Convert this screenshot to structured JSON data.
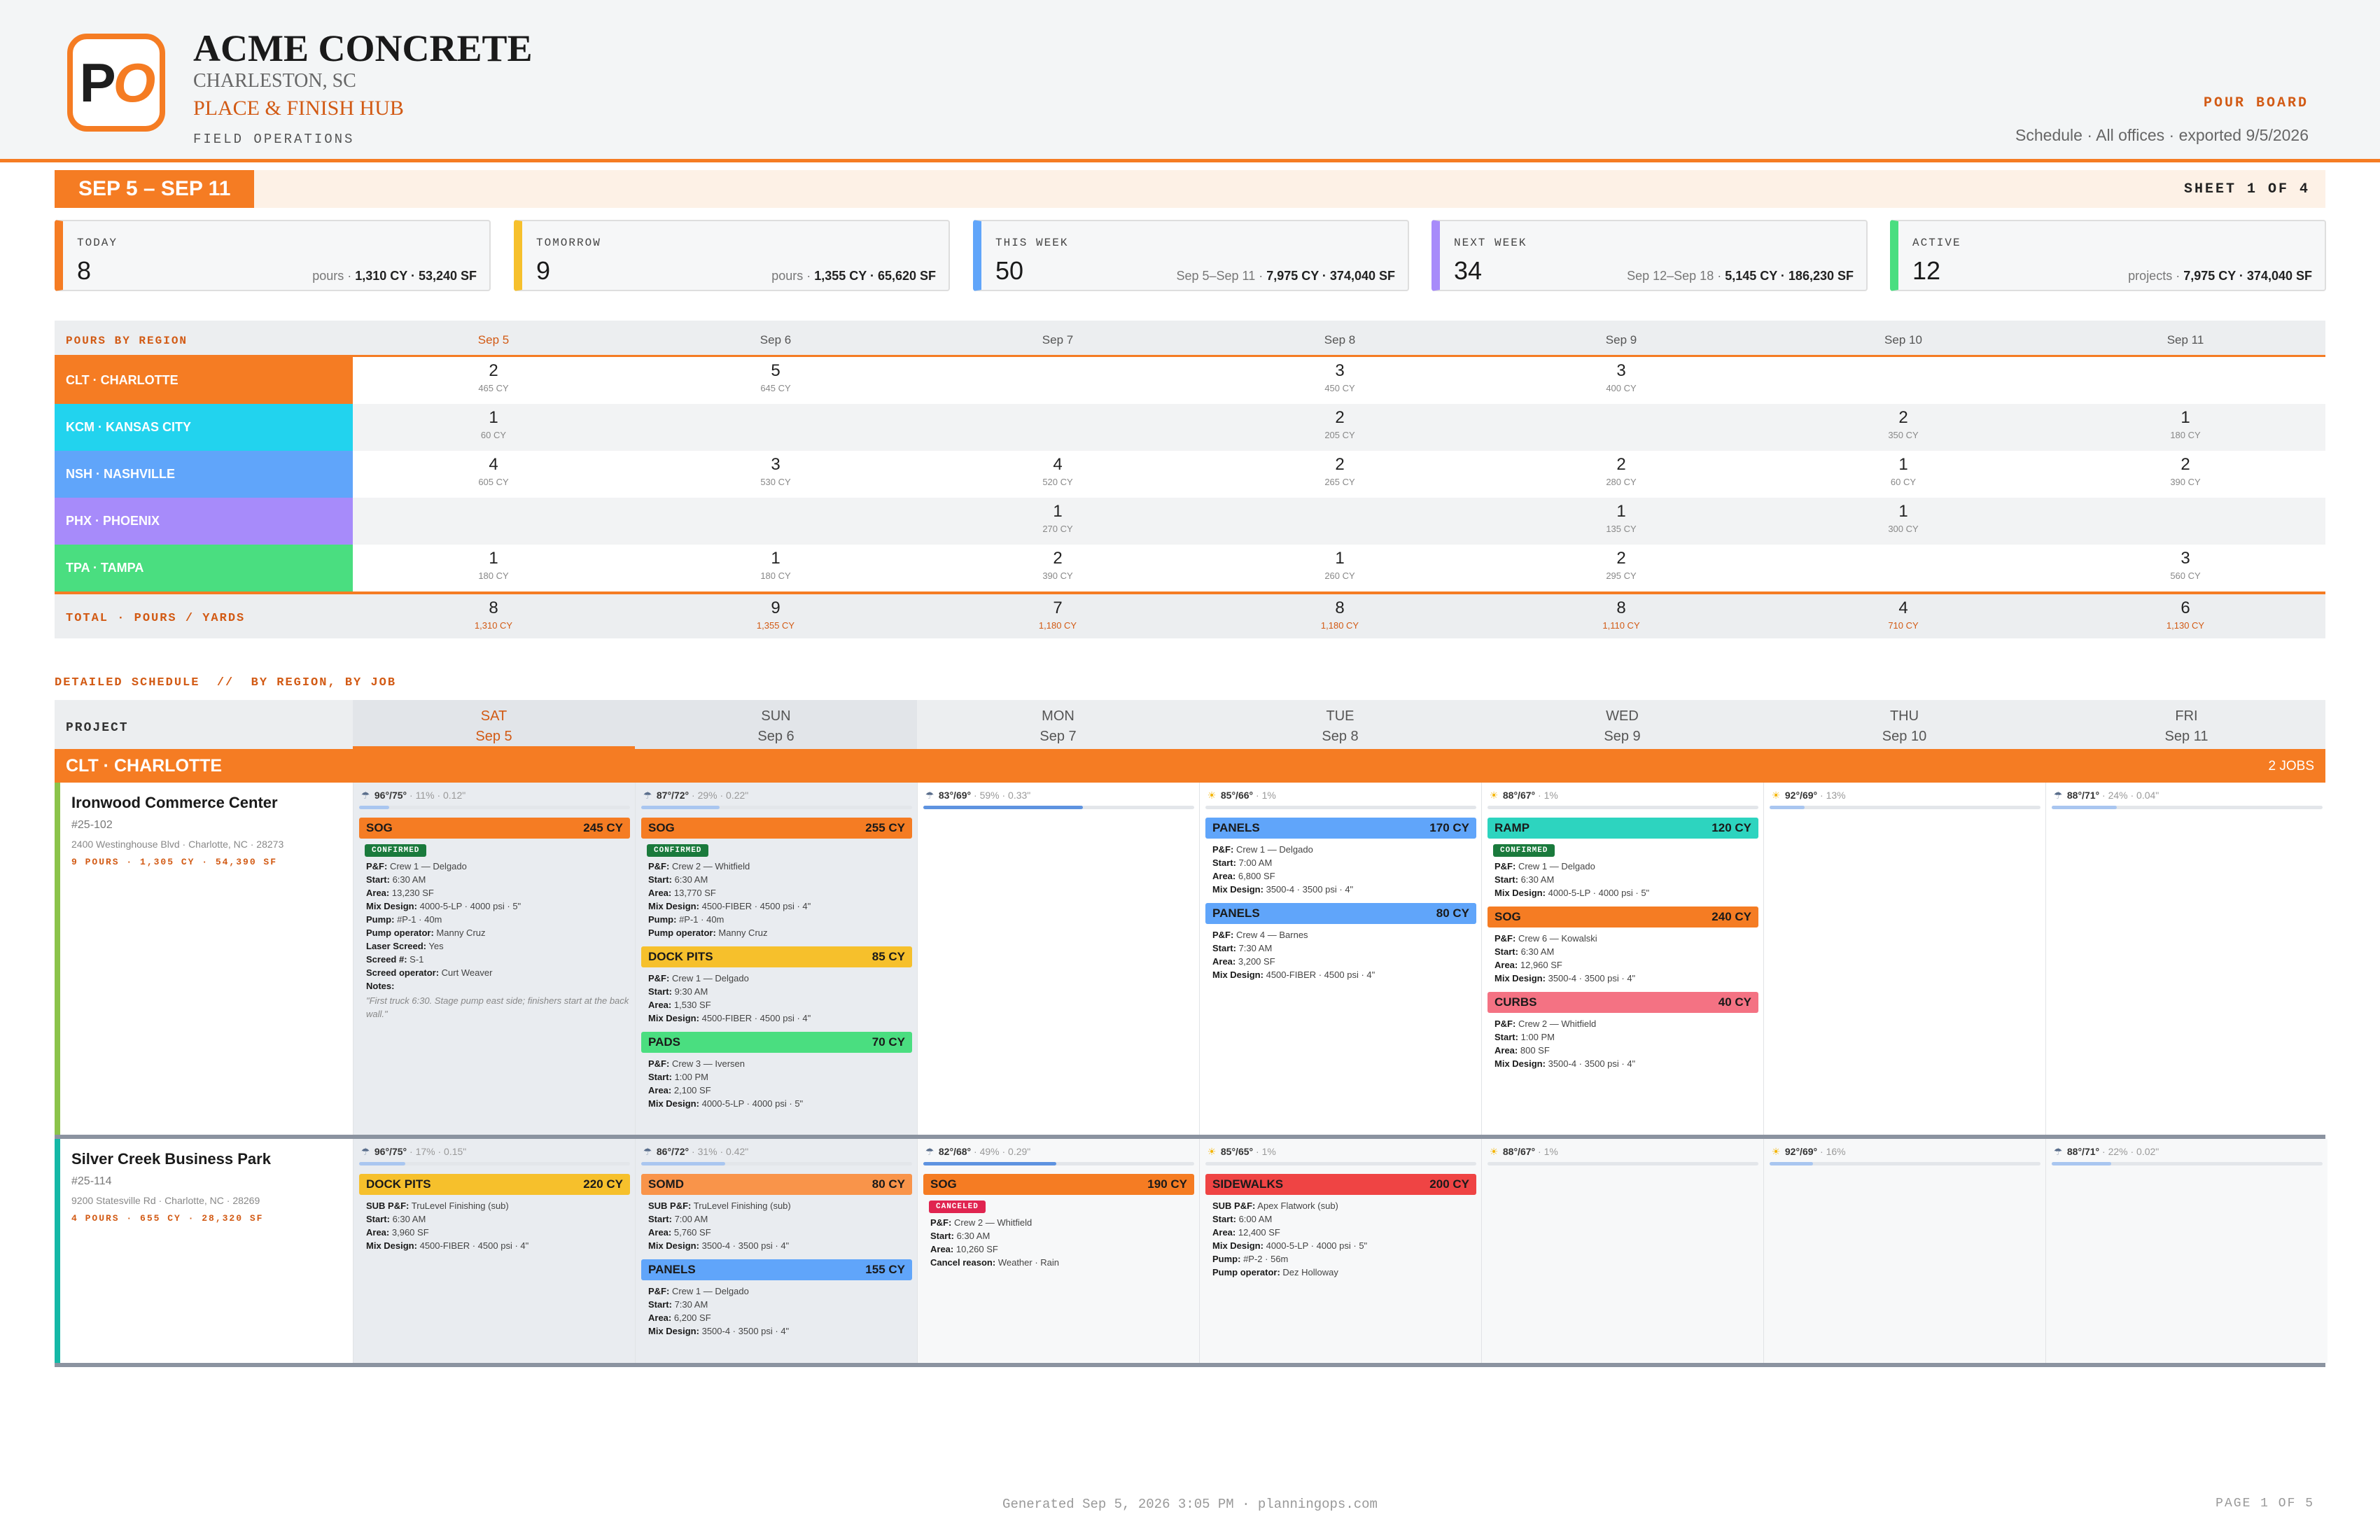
{
  "header": {
    "logo_p": "P",
    "logo_o": "O",
    "company": "ACME CONCRETE",
    "city": "CHARLESTON, SC",
    "hub": "PLACE & FINISH HUB",
    "field_ops": "FIELD OPERATIONS",
    "board_title": "POUR BOARD",
    "board_sub": "Schedule · All offices · exported 9/5/2026"
  },
  "range": {
    "label": "SEP 5 – SEP 11",
    "sheet": "SHEET 1 OF 4"
  },
  "stats": [
    {
      "label": "TODAY",
      "num": "8",
      "pre": "pours · ",
      "bold": "1,310 CY · 53,240 SF",
      "color": "#f57c23"
    },
    {
      "label": "TOMORROW",
      "num": "9",
      "pre": "pours · ",
      "bold": "1,355 CY · 65,620 SF",
      "color": "#f6c02c"
    },
    {
      "label": "THIS WEEK",
      "num": "50",
      "pre": "Sep 5–Sep 11 · ",
      "bold": "7,975 CY · 374,040 SF",
      "color": "#60a5fa"
    },
    {
      "label": "NEXT WEEK",
      "num": "34",
      "pre": "Sep 12–Sep 18 · ",
      "bold": "5,145 CY · 186,230 SF",
      "color": "#a78bfa"
    },
    {
      "label": "ACTIVE",
      "num": "12",
      "pre": "projects · ",
      "bold": "7,975 CY · 374,040 SF",
      "color": "#4ade80"
    }
  ],
  "regions": {
    "label": "POURS BY REGION",
    "days": [
      "Sep 5",
      "Sep 6",
      "Sep 7",
      "Sep 8",
      "Sep 9",
      "Sep 10",
      "Sep 11"
    ],
    "rows": [
      {
        "name": "CLT · CHARLOTTE",
        "color": "#f57c23",
        "cells": [
          [
            "2",
            "465 CY"
          ],
          [
            "5",
            "645 CY"
          ],
          null,
          [
            "3",
            "450 CY"
          ],
          [
            "3",
            "400 CY"
          ],
          null,
          null
        ]
      },
      {
        "name": "KCM · KANSAS CITY",
        "color": "#22d3ee",
        "cells": [
          [
            "1",
            "60 CY"
          ],
          null,
          null,
          [
            "2",
            "205 CY"
          ],
          null,
          [
            "2",
            "350 CY"
          ],
          [
            "1",
            "180 CY"
          ]
        ]
      },
      {
        "name": "NSH · NASHVILLE",
        "color": "#60a5fa",
        "cells": [
          [
            "4",
            "605 CY"
          ],
          [
            "3",
            "530 CY"
          ],
          [
            "4",
            "520 CY"
          ],
          [
            "2",
            "265 CY"
          ],
          [
            "2",
            "280 CY"
          ],
          [
            "1",
            "60 CY"
          ],
          [
            "2",
            "390 CY"
          ]
        ]
      },
      {
        "name": "PHX · PHOENIX",
        "color": "#a78bfa",
        "cells": [
          null,
          null,
          [
            "1",
            "270 CY"
          ],
          null,
          [
            "1",
            "135 CY"
          ],
          [
            "1",
            "300 CY"
          ],
          null
        ]
      },
      {
        "name": "TPA · TAMPA",
        "color": "#4ade80",
        "cells": [
          [
            "1",
            "180 CY"
          ],
          [
            "1",
            "180 CY"
          ],
          [
            "2",
            "390 CY"
          ],
          [
            "1",
            "260 CY"
          ],
          [
            "2",
            "295 CY"
          ],
          null,
          [
            "3",
            "560 CY"
          ]
        ]
      }
    ],
    "total_label": "TOTAL · POURS / YARDS",
    "totals": [
      [
        "8",
        "1,310 CY"
      ],
      [
        "9",
        "1,355 CY"
      ],
      [
        "7",
        "1,180 CY"
      ],
      [
        "8",
        "1,180 CY"
      ],
      [
        "8",
        "1,110 CY"
      ],
      [
        "4",
        "710 CY"
      ],
      [
        "6",
        "1,130 CY"
      ]
    ]
  },
  "detail_title": "DETAILED SCHEDULE  //  BY REGION, BY JOB",
  "schedule": {
    "project_label": "PROJECT",
    "cols": [
      [
        "SAT",
        "Sep 5"
      ],
      [
        "SUN",
        "Sep 6"
      ],
      [
        "MON",
        "Sep 7"
      ],
      [
        "TUE",
        "Sep 8"
      ],
      [
        "WED",
        "Sep 9"
      ],
      [
        "THU",
        "Sep 10"
      ],
      [
        "FRI",
        "Sep 11"
      ]
    ],
    "region": {
      "name": "CLT · CHARLOTTE",
      "jobs": "2 JOBS"
    },
    "jobs": [
      {
        "title": "Ironwood Commerce Center",
        "num": "#25-102",
        "addr": "2400 Westinghouse Blvd · Charlotte, NC · 28273",
        "stats": "9 POURS · 1,305 CY · 54,390 SF",
        "color": "#8bc34a",
        "days": [
          {
            "wx": {
              "icon": "rain",
              "t": "96°/75°",
              "p": "· 11% · 0.12\"",
              "bar": 0.11
            },
            "pours": [
              {
                "type": "SOG",
                "cy": "245 CY",
                "c": "c-sog",
                "badge": "CONFIRMED",
                "kv": [
                  [
                    "P&F:",
                    "Crew 1 — Delgado"
                  ],
                  [
                    "Start:",
                    "6:30 AM"
                  ],
                  [
                    "Area:",
                    "13,230 SF"
                  ],
                  [
                    "Mix Design:",
                    "4000-5-LP · 4000 psi · 5\""
                  ],
                  [
                    "Pump:",
                    "#P-1 · 40m"
                  ],
                  [
                    "Pump operator:",
                    "Manny Cruz"
                  ],
                  [
                    "Laser Screed:",
                    "Yes"
                  ],
                  [
                    "Screed #:",
                    "S-1"
                  ],
                  [
                    "Screed operator:",
                    "Curt Weaver"
                  ],
                  [
                    "Notes:",
                    ""
                  ]
                ],
                "notes": "\"First truck 6:30. Stage pump east side; finishers start at the back wall.\""
              }
            ]
          },
          {
            "wx": {
              "icon": "rain",
              "t": "87°/72°",
              "p": "· 29% · 0.22\"",
              "bar": 0.29
            },
            "pours": [
              {
                "type": "SOG",
                "cy": "255 CY",
                "c": "c-sog",
                "badge": "CONFIRMED",
                "kv": [
                  [
                    "P&F:",
                    "Crew 2 — Whitfield"
                  ],
                  [
                    "Start:",
                    "6:30 AM"
                  ],
                  [
                    "Area:",
                    "13,770 SF"
                  ],
                  [
                    "Mix Design:",
                    "4500-FIBER · 4500 psi · 4\""
                  ],
                  [
                    "Pump:",
                    "#P-1 · 40m"
                  ],
                  [
                    "Pump operator:",
                    "Manny Cruz"
                  ]
                ]
              },
              {
                "type": "DOCK PITS",
                "cy": "85 CY",
                "c": "c-dock",
                "kv": [
                  [
                    "P&F:",
                    "Crew 1 — Delgado"
                  ],
                  [
                    "Start:",
                    "9:30 AM"
                  ],
                  [
                    "Area:",
                    "1,530 SF"
                  ],
                  [
                    "Mix Design:",
                    "4500-FIBER · 4500 psi · 4\""
                  ]
                ]
              },
              {
                "type": "PADS",
                "cy": "70 CY",
                "c": "c-pads",
                "kv": [
                  [
                    "P&F:",
                    "Crew 3 — Iversen"
                  ],
                  [
                    "Start:",
                    "1:00 PM"
                  ],
                  [
                    "Area:",
                    "2,100 SF"
                  ],
                  [
                    "Mix Design:",
                    "4000-5-LP · 4000 psi · 5\""
                  ]
                ]
              }
            ]
          },
          {
            "wx": {
              "icon": "rain",
              "t": "83°/69°",
              "p": "· 59% · 0.33\"",
              "bar": 0.59,
              "h": true
            },
            "pours": []
          },
          {
            "wx": {
              "icon": "sun",
              "t": "85°/66°",
              "p": "· 1%",
              "bar": 0
            },
            "pours": [
              {
                "type": "PANELS",
                "cy": "170 CY",
                "c": "c-panels",
                "kv": [
                  [
                    "P&F:",
                    "Crew 1 — Delgado"
                  ],
                  [
                    "Start:",
                    "7:00 AM"
                  ],
                  [
                    "Area:",
                    "6,800 SF"
                  ],
                  [
                    "Mix Design:",
                    "3500-4 · 3500 psi · 4\""
                  ]
                ]
              },
              {
                "type": "PANELS",
                "cy": "80 CY",
                "c": "c-panels",
                "kv": [
                  [
                    "P&F:",
                    "Crew 4 — Barnes"
                  ],
                  [
                    "Start:",
                    "7:30 AM"
                  ],
                  [
                    "Area:",
                    "3,200 SF"
                  ],
                  [
                    "Mix Design:",
                    "4500-FIBER · 4500 psi · 4\""
                  ]
                ]
              }
            ]
          },
          {
            "wx": {
              "icon": "sun",
              "t": "88°/67°",
              "p": "· 1%",
              "bar": 0
            },
            "pours": [
              {
                "type": "RAMP",
                "cy": "120 CY",
                "c": "c-ramp",
                "badge": "CONFIRMED",
                "kv": [
                  [
                    "P&F:",
                    "Crew 1 — Delgado"
                  ],
                  [
                    "Start:",
                    "6:30 AM"
                  ],
                  [
                    "Mix Design:",
                    "4000-5-LP · 4000 psi · 5\""
                  ]
                ]
              },
              {
                "type": "SOG",
                "cy": "240 CY",
                "c": "c-sog",
                "kv": [
                  [
                    "P&F:",
                    "Crew 6 — Kowalski"
                  ],
                  [
                    "Start:",
                    "6:30 AM"
                  ],
                  [
                    "Area:",
                    "12,960 SF"
                  ],
                  [
                    "Mix Design:",
                    "3500-4 · 3500 psi · 4\""
                  ]
                ]
              },
              {
                "type": "CURBS",
                "cy": "40 CY",
                "c": "c-curbs",
                "kv": [
                  [
                    "P&F:",
                    "Crew 2 — Whitfield"
                  ],
                  [
                    "Start:",
                    "1:00 PM"
                  ],
                  [
                    "Area:",
                    "800 SF"
                  ],
                  [
                    "Mix Design:",
                    "3500-4 · 3500 psi · 4\""
                  ]
                ]
              }
            ]
          },
          {
            "wx": {
              "icon": "sun",
              "t": "92°/69°",
              "p": "· 13%",
              "bar": 0.13
            },
            "pours": []
          },
          {
            "wx": {
              "icon": "rain",
              "t": "88°/71°",
              "p": "· 24% · 0.04\"",
              "bar": 0.24
            },
            "pours": []
          }
        ]
      },
      {
        "title": "Silver Creek Business Park",
        "num": "#25-114",
        "addr": "9200 Statesville Rd · Charlotte, NC · 28269",
        "stats": "4 POURS · 655 CY · 28,320 SF",
        "color": "#14b8a6",
        "days": [
          {
            "wx": {
              "icon": "rain",
              "t": "96°/75°",
              "p": "· 17% · 0.15\"",
              "bar": 0.17
            },
            "pours": [
              {
                "type": "DOCK PITS",
                "cy": "220 CY",
                "c": "c-dock",
                "kv": [
                  [
                    "SUB P&F:",
                    "TruLevel Finishing (sub)"
                  ],
                  [
                    "Start:",
                    "6:30 AM"
                  ],
                  [
                    "Area:",
                    "3,960 SF"
                  ],
                  [
                    "Mix Design:",
                    "4500-FIBER · 4500 psi · 4\""
                  ]
                ]
              }
            ]
          },
          {
            "wx": {
              "icon": "rain",
              "t": "86°/72°",
              "p": "· 31% · 0.42\"",
              "bar": 0.31
            },
            "pours": [
              {
                "type": "SOMD",
                "cy": "80 CY",
                "c": "c-somd",
                "kv": [
                  [
                    "SUB P&F:",
                    "TruLevel Finishing (sub)"
                  ],
                  [
                    "Start:",
                    "7:00 AM"
                  ],
                  [
                    "Area:",
                    "5,760 SF"
                  ],
                  [
                    "Mix Design:",
                    "3500-4 · 3500 psi · 4\""
                  ]
                ]
              },
              {
                "type": "PANELS",
                "cy": "155 CY",
                "c": "c-panels",
                "kv": [
                  [
                    "P&F:",
                    "Crew 1 — Delgado"
                  ],
                  [
                    "Start:",
                    "7:30 AM"
                  ],
                  [
                    "Area:",
                    "6,200 SF"
                  ],
                  [
                    "Mix Design:",
                    "3500-4 · 3500 psi · 4\""
                  ]
                ]
              }
            ]
          },
          {
            "wx": {
              "icon": "rain",
              "t": "82°/68°",
              "p": "· 49% · 0.29\"",
              "bar": 0.49,
              "h": true
            },
            "pours": [
              {
                "type": "SOG",
                "cy": "190 CY",
                "c": "c-sog",
                "badge": "CANCELED",
                "cx": true,
                "kv": [
                  [
                    "P&F:",
                    "Crew 2 — Whitfield"
                  ],
                  [
                    "Start:",
                    "6:30 AM"
                  ],
                  [
                    "Area:",
                    "10,260 SF"
                  ],
                  [
                    "Cancel reason:",
                    "Weather · Rain"
                  ]
                ]
              }
            ]
          },
          {
            "wx": {
              "icon": "sun",
              "t": "85°/65°",
              "p": "· 1%",
              "bar": 0
            },
            "pours": [
              {
                "type": "SIDEWALKS",
                "cy": "200 CY",
                "c": "c-side",
                "kv": [
                  [
                    "SUB P&F:",
                    "Apex Flatwork (sub)"
                  ],
                  [
                    "Start:",
                    "6:00 AM"
                  ],
                  [
                    "Area:",
                    "12,400 SF"
                  ],
                  [
                    "Mix Design:",
                    "4000-5-LP · 4000 psi · 5\""
                  ],
                  [
                    "Pump:",
                    "#P-2 · 56m"
                  ],
                  [
                    "Pump operator:",
                    "Dez Holloway"
                  ]
                ]
              }
            ]
          },
          {
            "wx": {
              "icon": "sun",
              "t": "88°/67°",
              "p": "· 1%",
              "bar": 0
            },
            "pours": []
          },
          {
            "wx": {
              "icon": "sun",
              "t": "92°/69°",
              "p": "· 16%",
              "bar": 0.16
            },
            "pours": []
          },
          {
            "wx": {
              "icon": "rain",
              "t": "88°/71°",
              "p": "· 22% · 0.02\"",
              "bar": 0.22
            },
            "pours": []
          }
        ]
      }
    ]
  },
  "footer": {
    "generated": "Generated Sep 5, 2026 3:05 PM · planningops.com",
    "page": "PAGE 1 OF 5"
  }
}
